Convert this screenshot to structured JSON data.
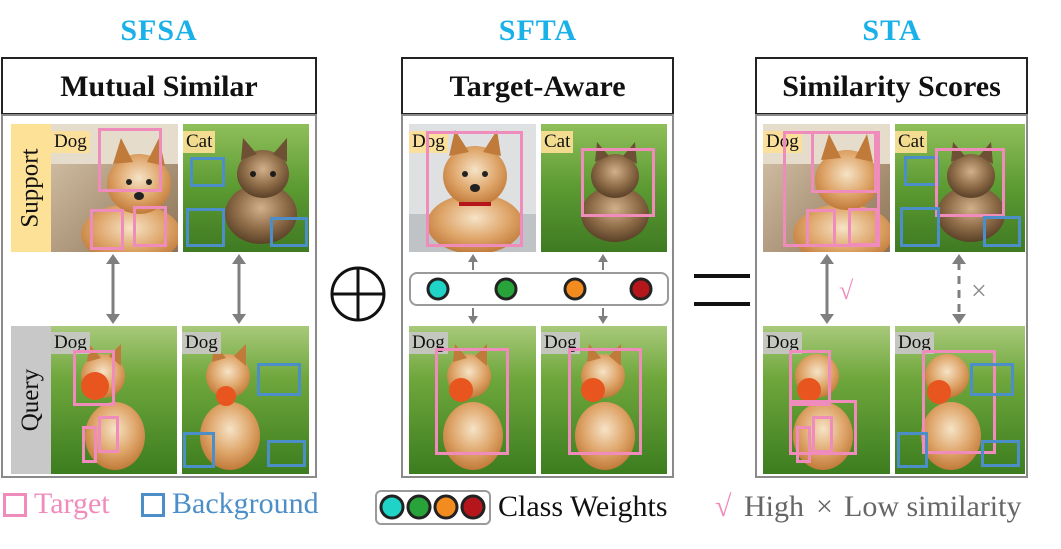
{
  "panels": [
    {
      "heading": "SFSA",
      "title": "Mutual Similar"
    },
    {
      "heading": "SFTA",
      "title": "Target-Aware"
    },
    {
      "heading": "STA",
      "title": "Similarity Scores"
    }
  ],
  "row_labels": {
    "support": "Support",
    "query": "Query"
  },
  "image_tags": {
    "dog": "Dog",
    "cat": "Cat"
  },
  "operators": {
    "plus": "⊕",
    "equals": "="
  },
  "sta_marks": {
    "check": "√",
    "cross": "×"
  },
  "class_weight_colors": [
    "#1fd3c6",
    "#27a33a",
    "#f28c1e",
    "#b5161b"
  ],
  "legend": {
    "target": "Target",
    "background": "Background",
    "class_weights": "Class Weights",
    "check": "√",
    "high": "High",
    "cross": "×",
    "low_similarity": "Low similarity"
  },
  "colors": {
    "heading": "#1ab0e8",
    "target_box": "#f08cbc",
    "background_box": "#4b8ec8",
    "frame": "#8a8a8a",
    "arrow": "#7f7f7f"
  }
}
